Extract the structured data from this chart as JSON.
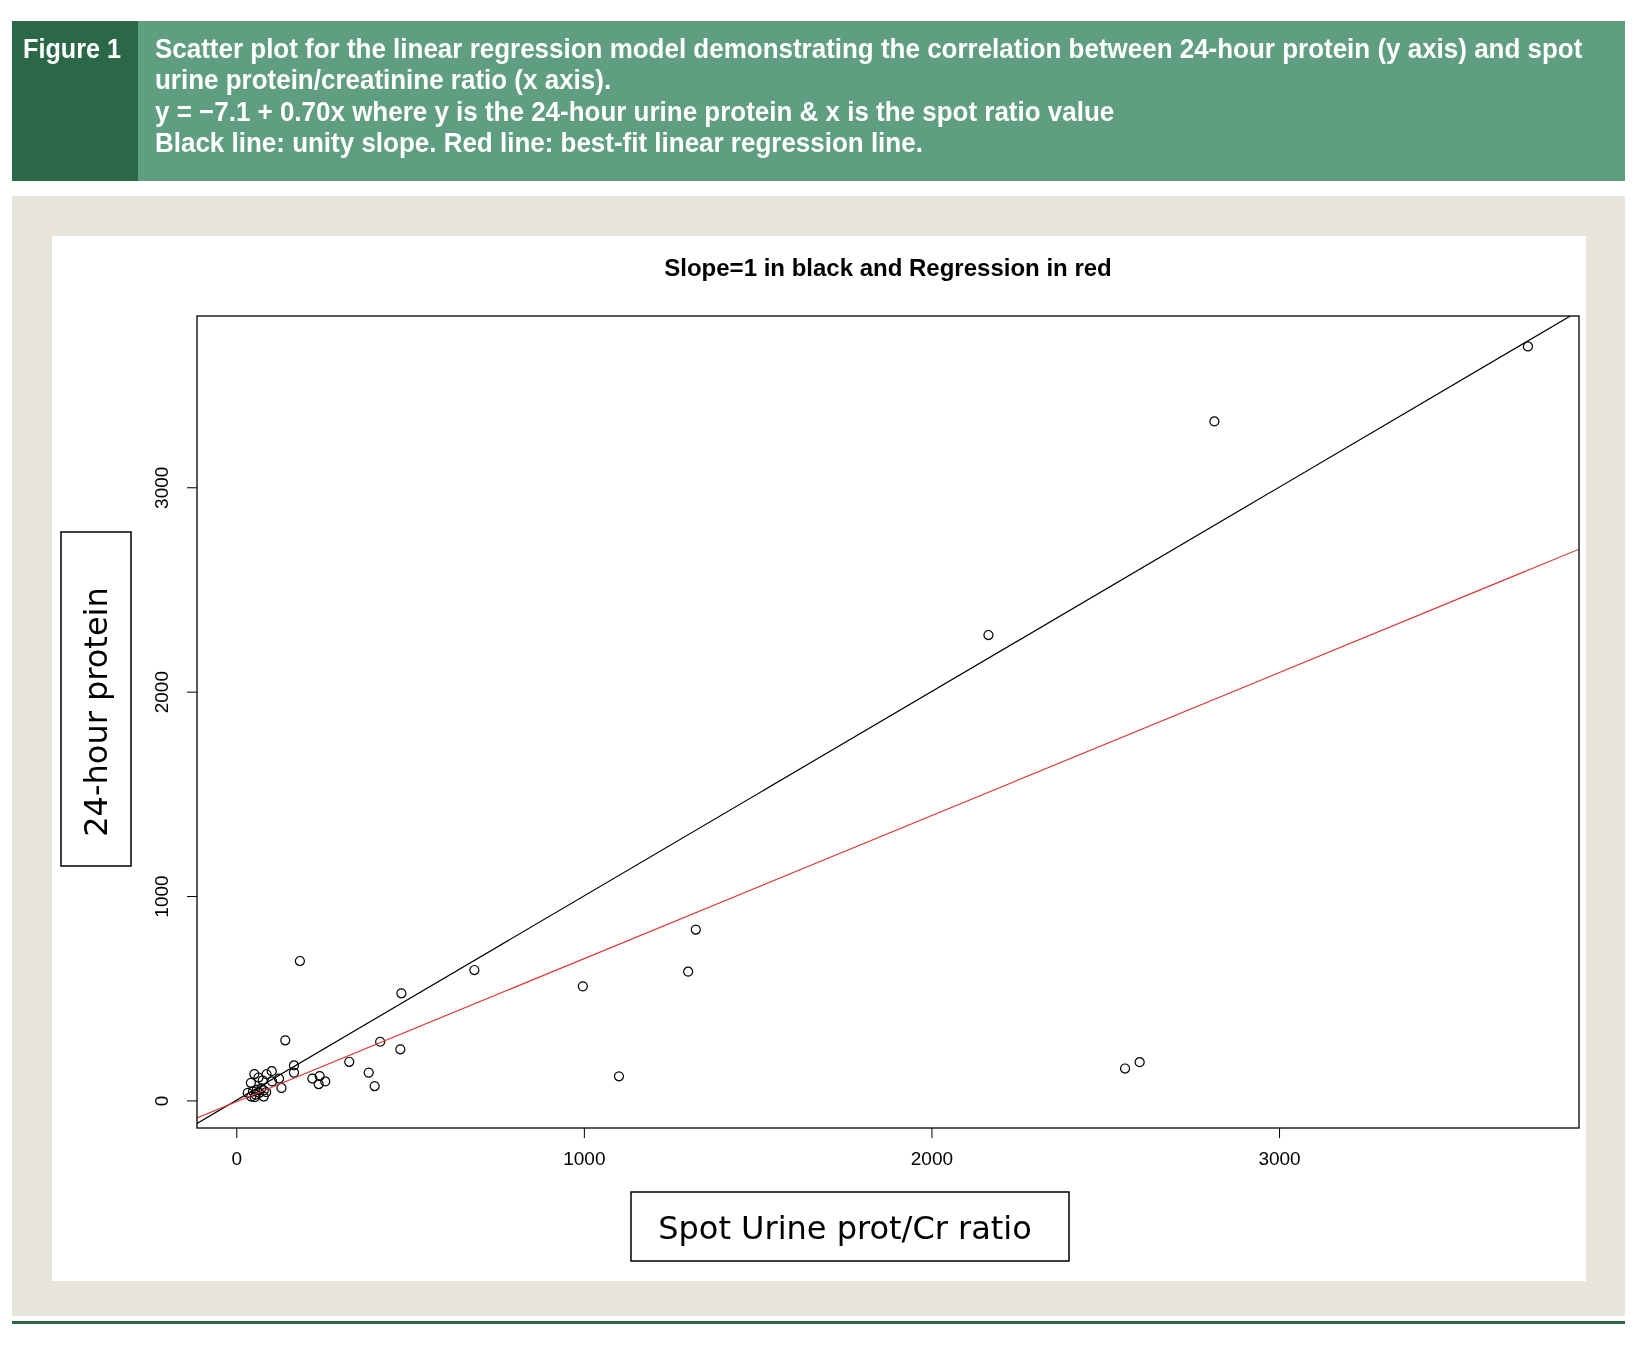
{
  "chart_data": {
    "type": "scatter",
    "title": "Slope=1 in black and Regression in red",
    "xlabel": "Spot Urine prot/Cr ratio",
    "ylabel": "24-hour protein",
    "annotations": [
      "Figure 1",
      "Scatter plot for the linear regression model demonstrating the correlation between 24-hour protein (y axis) and spot urine protein/creatinine ratio (x axis).",
      "y = −7.1 + 0.70x where y is the 24-hour urine protein & x is the spot ratio value",
      "Black line: unity slope. Red line: best-fit linear regression line."
    ],
    "xlim": [
      -113,
      3863
    ],
    "ylim": [
      -135,
      3838
    ],
    "xticks": [
      0,
      1000,
      2000,
      3000
    ],
    "yticks": [
      0,
      1000,
      2000,
      3000
    ],
    "series": [
      {
        "color": "#000000",
        "marker": "circle",
        "x": [
          3716,
          2814,
          2164,
          1322,
          1300,
          1101,
          2557,
          2599,
          183,
          685,
          475,
          997,
          141,
          414,
          472,
          325,
          381,
          398,
          166,
          166,
          219,
          240,
          237,
          256,
          130,
          123,
          102,
          87,
          103,
          52,
          64,
          42,
          76,
          79,
          86,
          33,
          48,
          59,
          43,
          53,
          79,
          66,
          56,
          72
        ],
        "values": [
          3689,
          3322,
          2277,
          836,
          630,
          118,
          156,
          187,
          682,
          638,
          524,
          558,
          294,
          287,
          250,
          189,
          136,
          70,
          171,
          136,
          107,
          119,
          80,
          93,
          61,
          107,
          143,
          128,
          93,
          129,
          112,
          86,
          98,
          49,
          40,
          37,
          44,
          51,
          19,
          16,
          19,
          37,
          28,
          59
        ]
      },
      {
        "type": "line",
        "color": "#000000",
        "x": [
          -113,
          3838
        ],
        "values": [
          -113,
          3838
        ]
      },
      {
        "type": "line",
        "color": "#e03a3a",
        "x": [
          -113,
          3863
        ],
        "values": [
          -86,
          2697
        ]
      }
    ]
  }
}
